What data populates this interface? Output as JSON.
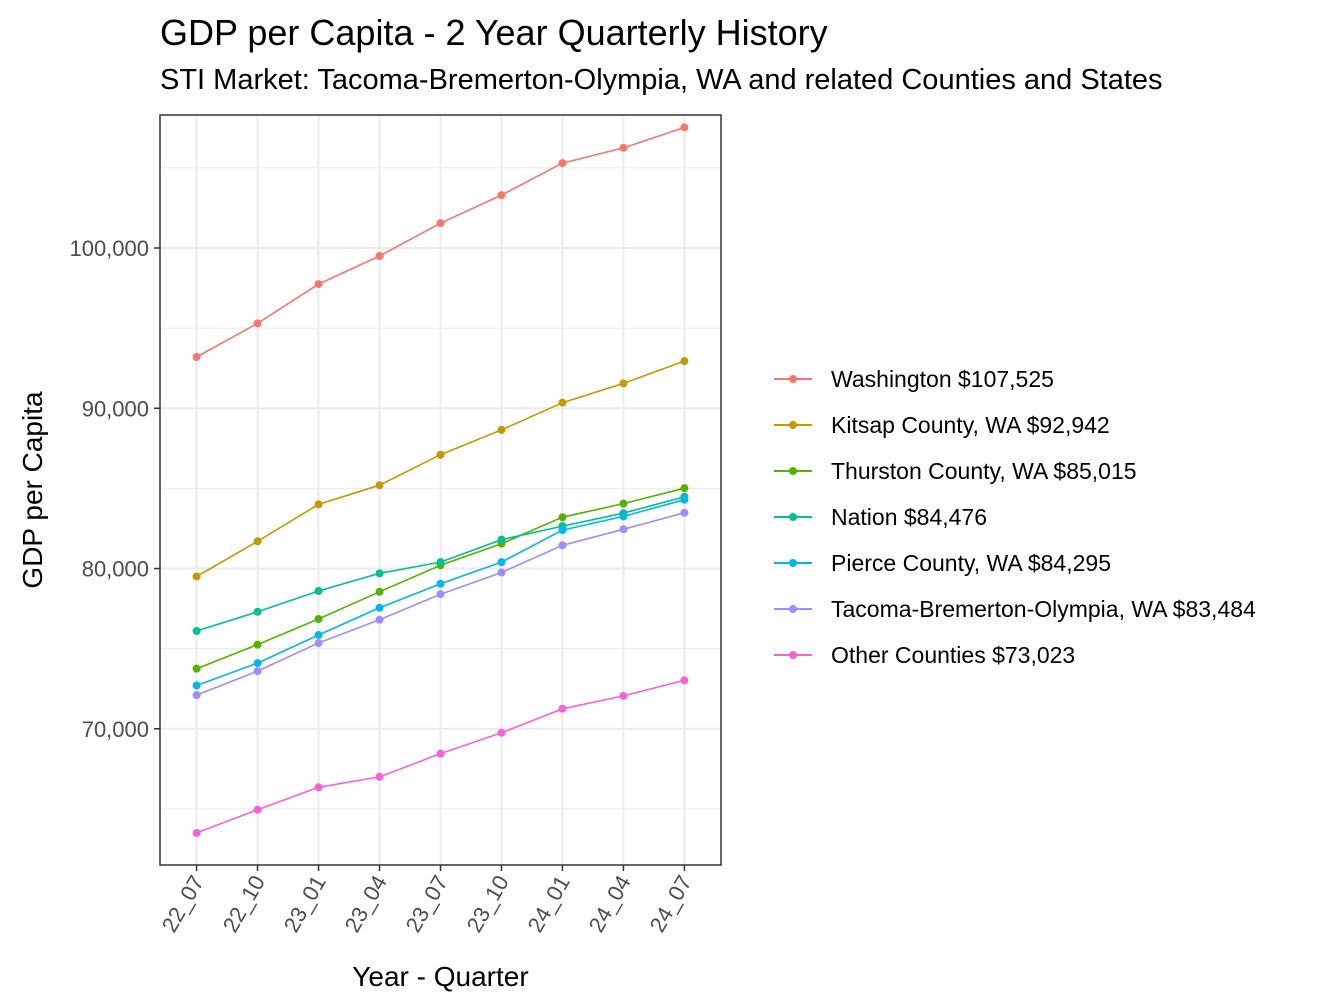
{
  "chart_data": {
    "type": "line",
    "title": "GDP per Capita - 2 Year Quarterly History",
    "subtitle": "STI Market: Tacoma-Bremerton-Olympia, WA and related Counties and States",
    "xlabel": "Year - Quarter",
    "ylabel": "GDP per Capita",
    "categories": [
      "22_07",
      "22_10",
      "23_01",
      "23_04",
      "23_07",
      "23_10",
      "24_01",
      "24_04",
      "24_07"
    ],
    "ylim": [
      61500,
      108300
    ],
    "yticks": [
      70000,
      80000,
      90000,
      100000
    ],
    "ytick_labels": [
      "70,000",
      "80,000",
      "90,000",
      "100,000"
    ],
    "grid": true,
    "legend_position": "right",
    "series": [
      {
        "name": "Washington $107,525",
        "color": "#F8766D",
        "values": [
          93200,
          95300,
          97750,
          99500,
          101550,
          103300,
          105300,
          106250,
          107525
        ]
      },
      {
        "name": "Kitsap County, WA $92,942",
        "color": "#C49A00",
        "values": [
          79500,
          81700,
          84000,
          85200,
          87100,
          88650,
          90350,
          91550,
          92942
        ]
      },
      {
        "name": "Thurston County, WA $85,015",
        "color": "#53B400",
        "values": [
          73750,
          75250,
          76850,
          78550,
          80200,
          81550,
          83200,
          84050,
          85015
        ]
      },
      {
        "name": "Nation $84,476",
        "color": "#00C094",
        "values": [
          76100,
          77300,
          78600,
          79700,
          80400,
          81800,
          82650,
          83450,
          84476
        ]
      },
      {
        "name": "Pierce County, WA $84,295",
        "color": "#00B6EB",
        "values": [
          72700,
          74100,
          75850,
          77550,
          79050,
          80400,
          82400,
          83250,
          84295
        ]
      },
      {
        "name": "Tacoma-Bremerton-Olympia, WA $83,484",
        "color": "#A58AFF",
        "values": [
          72100,
          73600,
          75350,
          76800,
          78400,
          79750,
          81450,
          82450,
          83484
        ]
      },
      {
        "name": "Other Counties $73,023",
        "color": "#FB61D7",
        "values": [
          63500,
          64950,
          66350,
          67000,
          68450,
          69750,
          71250,
          72050,
          73023
        ]
      }
    ]
  }
}
